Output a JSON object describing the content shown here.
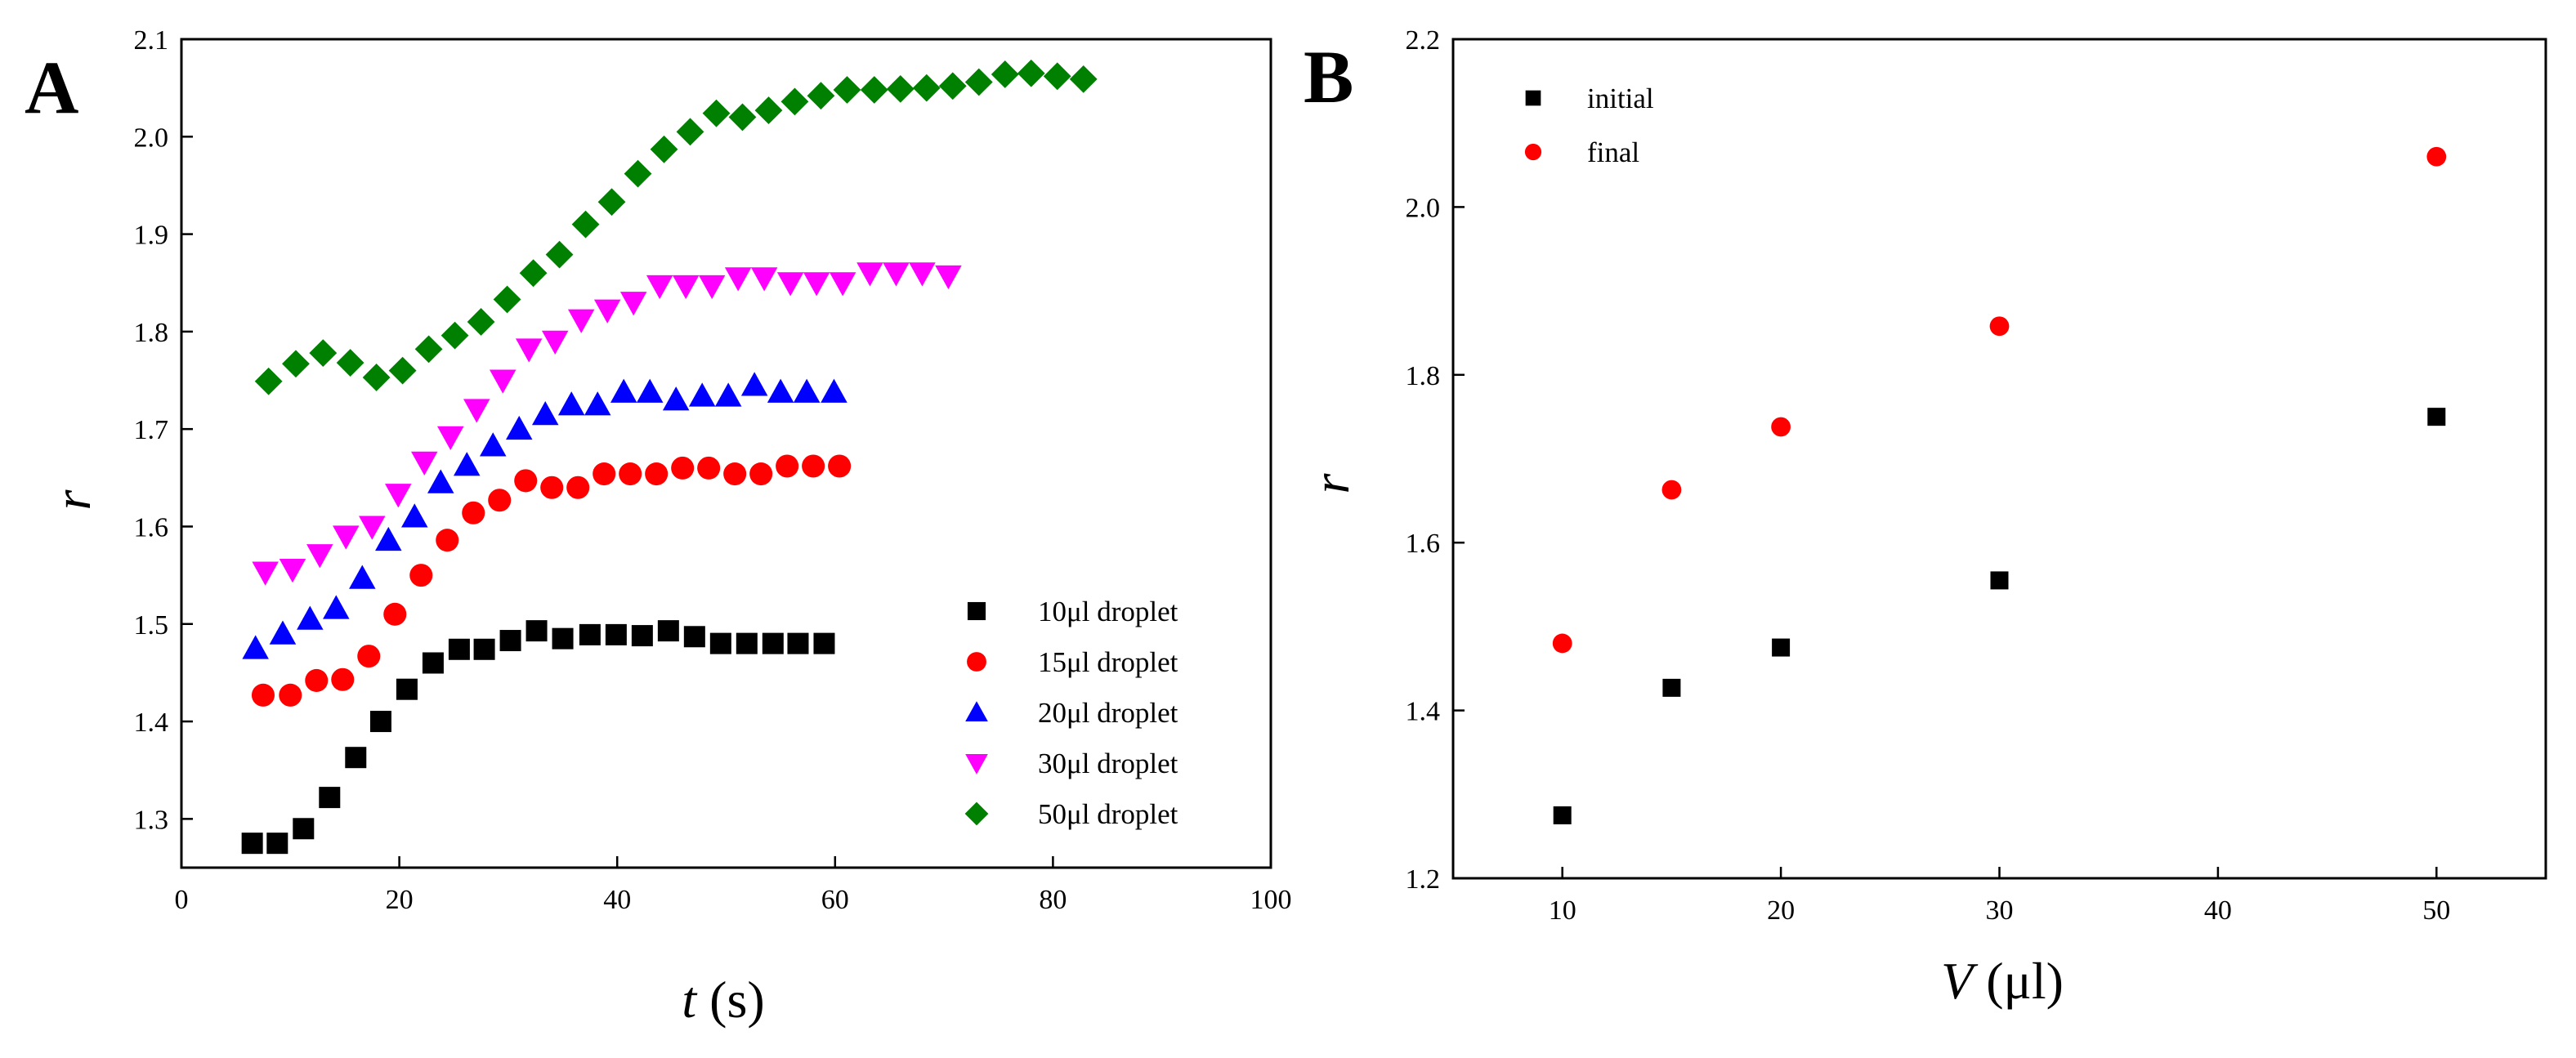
{
  "chart_data": [
    {
      "panel_label": "A",
      "type": "scatter",
      "title": "",
      "xlabel_var": "t",
      "xlabel_unit": " (s)",
      "ylabel": "r",
      "xlim": [
        0,
        100
      ],
      "ylim": [
        1.25,
        2.1
      ],
      "xticks": [
        0,
        20,
        40,
        60,
        80,
        100
      ],
      "yticks": [
        1.3,
        1.4,
        1.5,
        1.6,
        1.7,
        1.8,
        1.9,
        2.0,
        2.1
      ],
      "xtick_labels": [
        "0",
        "20",
        "40",
        "60",
        "80",
        "100"
      ],
      "ytick_labels": [
        "1.3",
        "1.4",
        "1.5",
        "1.6",
        "1.7",
        "1.8",
        "1.9",
        "2.0",
        "2.1"
      ],
      "legend_position": "bottom-right",
      "series": [
        {
          "name": "10μl droplet",
          "color": "#000000",
          "marker": "square",
          "x": [
            6.5,
            8.8,
            11.2,
            13.6,
            16.0,
            18.3,
            20.7,
            23.1,
            25.5,
            27.8,
            30.2,
            32.6,
            35.0,
            37.5,
            39.9,
            42.3,
            44.7,
            47.1,
            49.5,
            51.9,
            54.3,
            56.6,
            59.0
          ],
          "y": [
            1.275,
            1.275,
            1.29,
            1.322,
            1.363,
            1.4,
            1.433,
            1.46,
            1.474,
            1.474,
            1.483,
            1.493,
            1.485,
            1.489,
            1.489,
            1.488,
            1.493,
            1.487,
            1.48,
            1.48,
            1.48,
            1.48,
            1.48
          ]
        },
        {
          "name": "15μl droplet",
          "color": "#ff0000",
          "marker": "circle",
          "x": [
            7.5,
            10.0,
            12.4,
            14.8,
            17.2,
            19.6,
            22.0,
            24.4,
            26.8,
            29.2,
            31.6,
            34.0,
            36.4,
            38.8,
            41.2,
            43.6,
            46.0,
            48.4,
            50.8,
            53.2,
            55.6,
            58.0,
            60.4
          ],
          "y": [
            1.427,
            1.427,
            1.442,
            1.443,
            1.467,
            1.51,
            1.55,
            1.586,
            1.614,
            1.627,
            1.647,
            1.64,
            1.64,
            1.654,
            1.654,
            1.654,
            1.66,
            1.66,
            1.654,
            1.654,
            1.662,
            1.662,
            1.662
          ]
        },
        {
          "name": "20μl droplet",
          "color": "#0000ff",
          "marker": "triangle-up",
          "x": [
            6.8,
            9.3,
            11.8,
            14.2,
            16.6,
            19.0,
            21.4,
            23.8,
            26.2,
            28.6,
            31.0,
            33.4,
            35.8,
            38.2,
            40.6,
            43.0,
            45.4,
            47.8,
            50.2,
            52.6,
            55.0,
            57.4,
            59.9
          ],
          "y": [
            1.475,
            1.49,
            1.505,
            1.516,
            1.547,
            1.586,
            1.61,
            1.645,
            1.663,
            1.683,
            1.7,
            1.715,
            1.725,
            1.725,
            1.738,
            1.738,
            1.73,
            1.734,
            1.734,
            1.745,
            1.738,
            1.738,
            1.738
          ]
        },
        {
          "name": "30μl droplet",
          "color": "#ff00ff",
          "marker": "triangle-down",
          "x": [
            7.7,
            10.2,
            12.7,
            15.1,
            17.5,
            19.9,
            22.3,
            24.7,
            27.1,
            29.5,
            31.9,
            34.3,
            36.7,
            39.1,
            41.5,
            43.9,
            46.3,
            48.7,
            51.1,
            53.5,
            55.9,
            58.3,
            60.7,
            63.2,
            65.6,
            68.0,
            70.4
          ],
          "y": [
            1.553,
            1.556,
            1.571,
            1.59,
            1.6,
            1.633,
            1.666,
            1.692,
            1.72,
            1.75,
            1.782,
            1.79,
            1.812,
            1.822,
            1.83,
            1.847,
            1.847,
            1.847,
            1.855,
            1.855,
            1.85,
            1.85,
            1.85,
            1.86,
            1.86,
            1.86,
            1.857
          ]
        },
        {
          "name": "50μl droplet",
          "color": "#008000",
          "marker": "diamond",
          "x": [
            8.0,
            10.5,
            13.0,
            15.5,
            17.9,
            20.3,
            22.7,
            25.1,
            27.5,
            29.9,
            32.3,
            34.7,
            37.1,
            39.5,
            41.9,
            44.3,
            46.7,
            49.1,
            51.5,
            53.9,
            56.3,
            58.7,
            61.1,
            63.6,
            66.0,
            68.4,
            70.8,
            73.2,
            75.6,
            78.0,
            80.4,
            82.8
          ],
          "y": [
            1.749,
            1.767,
            1.778,
            1.768,
            1.753,
            1.76,
            1.782,
            1.796,
            1.81,
            1.833,
            1.86,
            1.879,
            1.91,
            1.933,
            1.962,
            1.987,
            2.005,
            2.024,
            2.02,
            2.027,
            2.036,
            2.042,
            2.048,
            2.048,
            2.049,
            2.05,
            2.052,
            2.056,
            2.064,
            2.065,
            2.062,
            2.059
          ]
        }
      ]
    },
    {
      "panel_label": "B",
      "type": "scatter",
      "title": "",
      "xlabel_var": "V",
      "xlabel_unit": " (μl)",
      "ylabel": "r",
      "xlim": [
        5,
        55
      ],
      "ylim": [
        1.2,
        2.2
      ],
      "xticks": [
        10,
        20,
        30,
        40,
        50
      ],
      "yticks": [
        1.2,
        1.4,
        1.6,
        1.8,
        2.0,
        2.2
      ],
      "xtick_labels": [
        "10",
        "20",
        "30",
        "40",
        "50"
      ],
      "ytick_labels": [
        "1.2",
        "1.4",
        "1.6",
        "1.8",
        "2.0",
        "2.2"
      ],
      "legend_position": "top-left",
      "series": [
        {
          "name": "initial",
          "color": "#000000",
          "marker": "square",
          "x": [
            10,
            15,
            20,
            30,
            50
          ],
          "y": [
            1.275,
            1.427,
            1.475,
            1.555,
            1.75
          ]
        },
        {
          "name": "final",
          "color": "#ff0000",
          "marker": "circle",
          "x": [
            10,
            15,
            20,
            30,
            50
          ],
          "y": [
            1.48,
            1.663,
            1.738,
            1.858,
            2.06
          ]
        }
      ]
    }
  ]
}
